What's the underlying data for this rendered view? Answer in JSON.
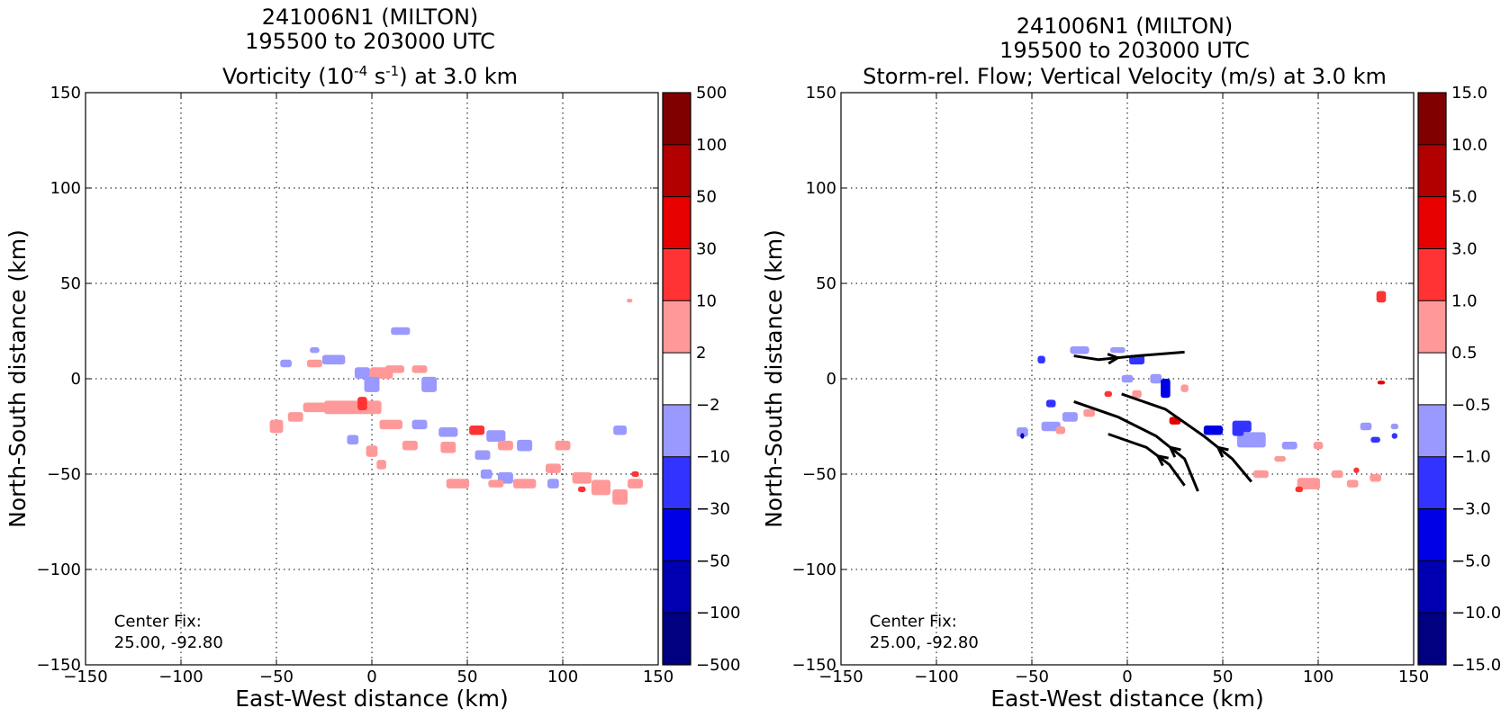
{
  "chart_data": [
    {
      "type": "heatmap",
      "title_lines": [
        "241006N1 (MILTON)",
        "195500 to 203000 UTC"
      ],
      "title_line3": {
        "prefix": "Vorticity (10",
        "sup1": "-4",
        "middle": " s",
        "sup2": "-1",
        "suffix": ") at 3.0 km"
      },
      "xlabel": "East-West distance (km)",
      "ylabel": "North-South distance (km)",
      "xlim": [
        -150,
        150
      ],
      "ylim": [
        -150,
        150
      ],
      "xticks": [
        -150,
        -100,
        -50,
        0,
        50,
        100,
        150
      ],
      "yticks": [
        -150,
        -100,
        -50,
        0,
        50,
        100,
        150
      ],
      "xtick_labels": [
        "−150",
        "−100",
        "−50",
        "0",
        "50",
        "100",
        "150"
      ],
      "ytick_labels": [
        "−150",
        "−100",
        "−50",
        "0",
        "50",
        "100",
        "150"
      ],
      "grid": true,
      "colorbar": {
        "labels": [
          "−500",
          "−100",
          "−50",
          "−30",
          "−10",
          "−2",
          "2",
          "10",
          "30",
          "50",
          "100",
          "500"
        ],
        "levels": [
          -500,
          -100,
          -50,
          -30,
          -10,
          -2,
          2,
          10,
          30,
          50,
          100,
          500
        ],
        "colors": [
          "#000080",
          "#0000b2",
          "#0000e6",
          "#3333ff",
          "#9999ff",
          "#ffffff",
          "#ff9999",
          "#ff3333",
          "#e60000",
          "#b20000",
          "#800000"
        ]
      },
      "annotation": [
        "Center Fix:",
        "25.00, -92.80"
      ],
      "patches": [
        {
          "x": -20,
          "y": 10,
          "w": 12,
          "h": 5,
          "bin": 4
        },
        {
          "x": -5,
          "y": 3,
          "w": 8,
          "h": 6,
          "bin": 4
        },
        {
          "x": 5,
          "y": 3,
          "w": 12,
          "h": 6,
          "bin": 6
        },
        {
          "x": 12,
          "y": 5,
          "w": 10,
          "h": 4,
          "bin": 6
        },
        {
          "x": 25,
          "y": 5,
          "w": 8,
          "h": 4,
          "bin": 6
        },
        {
          "x": 15,
          "y": 25,
          "w": 10,
          "h": 4,
          "bin": 4
        },
        {
          "x": 30,
          "y": -3,
          "w": 8,
          "h": 8,
          "bin": 4
        },
        {
          "x": 0,
          "y": -3,
          "w": 8,
          "h": 8,
          "bin": 4
        },
        {
          "x": -30,
          "y": 8,
          "w": 8,
          "h": 4,
          "bin": 6
        },
        {
          "x": -45,
          "y": 8,
          "w": 6,
          "h": 4,
          "bin": 4
        },
        {
          "x": -10,
          "y": -15,
          "w": 30,
          "h": 7,
          "bin": 6
        },
        {
          "x": -30,
          "y": -15,
          "w": 12,
          "h": 5,
          "bin": 6
        },
        {
          "x": -5,
          "y": -13,
          "w": 5,
          "h": 7,
          "bin": 7
        },
        {
          "x": -50,
          "y": -25,
          "w": 7,
          "h": 7,
          "bin": 6
        },
        {
          "x": -40,
          "y": -20,
          "w": 8,
          "h": 5,
          "bin": 6
        },
        {
          "x": 10,
          "y": -24,
          "w": 12,
          "h": 5,
          "bin": 6
        },
        {
          "x": 25,
          "y": -24,
          "w": 8,
          "h": 5,
          "bin": 4
        },
        {
          "x": 40,
          "y": -28,
          "w": 10,
          "h": 5,
          "bin": 4
        },
        {
          "x": 55,
          "y": -27,
          "w": 8,
          "h": 5,
          "bin": 7
        },
        {
          "x": 65,
          "y": -30,
          "w": 10,
          "h": 6,
          "bin": 4
        },
        {
          "x": 70,
          "y": -35,
          "w": 8,
          "h": 5,
          "bin": 6
        },
        {
          "x": 80,
          "y": -35,
          "w": 8,
          "h": 6,
          "bin": 4
        },
        {
          "x": 100,
          "y": -35,
          "w": 8,
          "h": 5,
          "bin": 6
        },
        {
          "x": 130,
          "y": -27,
          "w": 7,
          "h": 5,
          "bin": 4
        },
        {
          "x": -10,
          "y": -32,
          "w": 6,
          "h": 5,
          "bin": 4
        },
        {
          "x": 0,
          "y": -38,
          "w": 6,
          "h": 6,
          "bin": 6
        },
        {
          "x": 20,
          "y": -35,
          "w": 8,
          "h": 5,
          "bin": 6
        },
        {
          "x": 40,
          "y": -36,
          "w": 8,
          "h": 6,
          "bin": 6
        },
        {
          "x": 58,
          "y": -40,
          "w": 8,
          "h": 5,
          "bin": 4
        },
        {
          "x": 45,
          "y": -55,
          "w": 12,
          "h": 5,
          "bin": 6
        },
        {
          "x": 70,
          "y": -52,
          "w": 8,
          "h": 6,
          "bin": 4
        },
        {
          "x": 80,
          "y": -55,
          "w": 12,
          "h": 5,
          "bin": 6
        },
        {
          "x": 95,
          "y": -47,
          "w": 8,
          "h": 5,
          "bin": 6
        },
        {
          "x": 95,
          "y": -55,
          "w": 6,
          "h": 5,
          "bin": 4
        },
        {
          "x": 110,
          "y": -52,
          "w": 10,
          "h": 6,
          "bin": 6
        },
        {
          "x": 120,
          "y": -57,
          "w": 10,
          "h": 8,
          "bin": 6
        },
        {
          "x": 130,
          "y": -62,
          "w": 8,
          "h": 8,
          "bin": 6
        },
        {
          "x": 138,
          "y": -55,
          "w": 8,
          "h": 5,
          "bin": 6
        },
        {
          "x": 138,
          "y": -50,
          "w": 4,
          "h": 3,
          "bin": 7
        },
        {
          "x": 60,
          "y": -50,
          "w": 6,
          "h": 5,
          "bin": 4
        },
        {
          "x": 65,
          "y": -55,
          "w": 8,
          "h": 4,
          "bin": 6
        },
        {
          "x": 110,
          "y": -58,
          "w": 4,
          "h": 3,
          "bin": 7
        },
        {
          "x": 135,
          "y": 41,
          "w": 3,
          "h": 2,
          "bin": 6
        },
        {
          "x": 5,
          "y": -45,
          "w": 5,
          "h": 5,
          "bin": 6
        },
        {
          "x": -30,
          "y": 15,
          "w": 5,
          "h": 3,
          "bin": 4
        }
      ]
    },
    {
      "type": "heatmap",
      "title_lines": [
        "241006N1 (MILTON)",
        "195500 to 203000 UTC",
        "Storm-rel. Flow; Vertical Velocity (m/s) at 3.0 km"
      ],
      "xlabel": "East-West distance (km)",
      "ylabel": "North-South distance (km)",
      "xlim": [
        -150,
        150
      ],
      "ylim": [
        -150,
        150
      ],
      "xticks": [
        -150,
        -100,
        -50,
        0,
        50,
        100,
        150
      ],
      "yticks": [
        -150,
        -100,
        -50,
        0,
        50,
        100,
        150
      ],
      "xtick_labels": [
        "−150",
        "−100",
        "−50",
        "0",
        "50",
        "100",
        "150"
      ],
      "ytick_labels": [
        "−150",
        "−100",
        "−50",
        "0",
        "50",
        "100",
        "150"
      ],
      "grid": true,
      "colorbar": {
        "labels": [
          "−15.0",
          "−10.0",
          "−5.0",
          "−3.0",
          "−1.0",
          "−0.5",
          "0.5",
          "1.0",
          "3.0",
          "5.0",
          "10.0",
          "15.0"
        ],
        "levels": [
          -15,
          -10,
          -5,
          -3,
          -1,
          -0.5,
          0.5,
          1,
          3,
          5,
          10,
          15
        ],
        "colors": [
          "#000080",
          "#0000b2",
          "#0000e6",
          "#3333ff",
          "#9999ff",
          "#ffffff",
          "#ff9999",
          "#ff3333",
          "#e60000",
          "#b20000",
          "#800000"
        ]
      },
      "annotation": [
        "Center Fix:",
        "25.00, -92.80"
      ],
      "patches": [
        {
          "x": -45,
          "y": 10,
          "w": 4,
          "h": 4,
          "bin": 3
        },
        {
          "x": -25,
          "y": 15,
          "w": 10,
          "h": 4,
          "bin": 4
        },
        {
          "x": -5,
          "y": 15,
          "w": 8,
          "h": 3,
          "bin": 4
        },
        {
          "x": 5,
          "y": 10,
          "w": 8,
          "h": 5,
          "bin": 3
        },
        {
          "x": 0,
          "y": 0,
          "w": 6,
          "h": 4,
          "bin": 4
        },
        {
          "x": 15,
          "y": 0,
          "w": 6,
          "h": 5,
          "bin": 4
        },
        {
          "x": 20,
          "y": -5,
          "w": 5,
          "h": 10,
          "bin": 2
        },
        {
          "x": -40,
          "y": -13,
          "w": 5,
          "h": 4,
          "bin": 3
        },
        {
          "x": -40,
          "y": -25,
          "w": 10,
          "h": 5,
          "bin": 4
        },
        {
          "x": -30,
          "y": -20,
          "w": 8,
          "h": 5,
          "bin": 4
        },
        {
          "x": -55,
          "y": -28,
          "w": 6,
          "h": 5,
          "bin": 4
        },
        {
          "x": -55,
          "y": -30,
          "w": 2,
          "h": 3,
          "bin": 1
        },
        {
          "x": 45,
          "y": -27,
          "w": 10,
          "h": 5,
          "bin": 2
        },
        {
          "x": 60,
          "y": -25,
          "w": 10,
          "h": 6,
          "bin": 3
        },
        {
          "x": 65,
          "y": -32,
          "w": 15,
          "h": 8,
          "bin": 4
        },
        {
          "x": 58,
          "y": -28,
          "w": 6,
          "h": 4,
          "bin": 3
        },
        {
          "x": 85,
          "y": -35,
          "w": 8,
          "h": 4,
          "bin": 4
        },
        {
          "x": 125,
          "y": -25,
          "w": 6,
          "h": 4,
          "bin": 4
        },
        {
          "x": 130,
          "y": -32,
          "w": 5,
          "h": 3,
          "bin": 3
        },
        {
          "x": 140,
          "y": -25,
          "w": 4,
          "h": 3,
          "bin": 4
        },
        {
          "x": 140,
          "y": -30,
          "w": 3,
          "h": 3,
          "bin": 3
        },
        {
          "x": 133,
          "y": 43,
          "w": 5,
          "h": 6,
          "bin": 7
        },
        {
          "x": 133,
          "y": -2,
          "w": 4,
          "h": 2,
          "bin": 8
        },
        {
          "x": 25,
          "y": -22,
          "w": 6,
          "h": 4,
          "bin": 8
        },
        {
          "x": -10,
          "y": -8,
          "w": 4,
          "h": 3,
          "bin": 7
        },
        {
          "x": 5,
          "y": -8,
          "w": 5,
          "h": 4,
          "bin": 6
        },
        {
          "x": 30,
          "y": -5,
          "w": 4,
          "h": 4,
          "bin": 6
        },
        {
          "x": -20,
          "y": -18,
          "w": 6,
          "h": 4,
          "bin": 6
        },
        {
          "x": -35,
          "y": -27,
          "w": 5,
          "h": 4,
          "bin": 6
        },
        {
          "x": 70,
          "y": -50,
          "w": 8,
          "h": 4,
          "bin": 6
        },
        {
          "x": 95,
          "y": -55,
          "w": 12,
          "h": 6,
          "bin": 6
        },
        {
          "x": 110,
          "y": -50,
          "w": 6,
          "h": 4,
          "bin": 6
        },
        {
          "x": 118,
          "y": -55,
          "w": 6,
          "h": 4,
          "bin": 6
        },
        {
          "x": 130,
          "y": -52,
          "w": 6,
          "h": 4,
          "bin": 6
        },
        {
          "x": 120,
          "y": -48,
          "w": 3,
          "h": 3,
          "bin": 7
        },
        {
          "x": 100,
          "y": -35,
          "w": 5,
          "h": 4,
          "bin": 6
        },
        {
          "x": 90,
          "y": -58,
          "w": 4,
          "h": 3,
          "bin": 7
        },
        {
          "x": 80,
          "y": -42,
          "w": 6,
          "h": 3,
          "bin": 6
        }
      ],
      "streamlines": [
        [
          [
            30,
            14
          ],
          [
            5,
            12
          ],
          [
            -15,
            10
          ],
          [
            -28,
            12
          ]
        ],
        [
          [
            -28,
            -12
          ],
          [
            -5,
            -20
          ],
          [
            15,
            -30
          ],
          [
            30,
            -42
          ],
          [
            37,
            -59
          ]
        ],
        [
          [
            -10,
            -29
          ],
          [
            10,
            -36
          ],
          [
            22,
            -45
          ],
          [
            30,
            -56
          ]
        ],
        [
          [
            -3,
            -8
          ],
          [
            20,
            -16
          ],
          [
            40,
            -30
          ],
          [
            55,
            -42
          ],
          [
            65,
            -54
          ]
        ]
      ]
    }
  ]
}
